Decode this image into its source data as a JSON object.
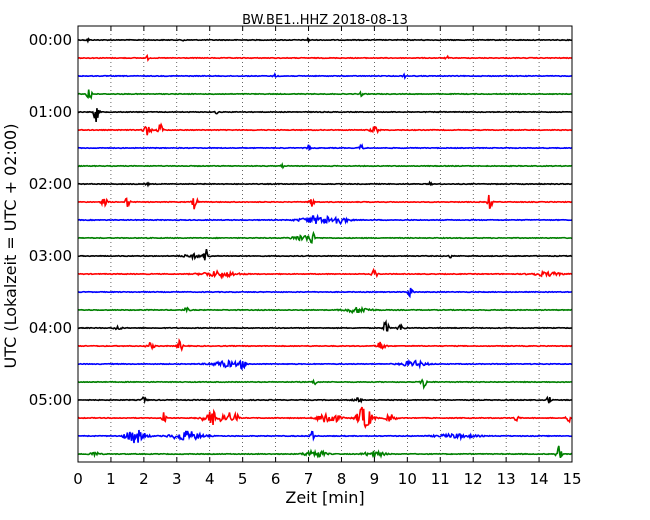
{
  "chart_data": {
    "type": "line",
    "title": "BW.BE1..HHZ 2018-08-13",
    "xlabel": "Zeit  [min]",
    "ylabel": "UTC (Lokalzeit = UTC + 02:00)",
    "xlim": [
      0,
      15
    ],
    "x_ticks": [
      "0",
      "1",
      "2",
      "3",
      "4",
      "5",
      "6",
      "7",
      "8",
      "9",
      "10",
      "11",
      "12",
      "13",
      "14",
      "15"
    ],
    "y_tick_labels": [
      "00:00",
      "01:00",
      "02:00",
      "03:00",
      "04:00",
      "05:00"
    ],
    "minutes_per_trace": 15,
    "grid": "x-dotted",
    "series": [
      {
        "start": "00:00",
        "color": "#000000",
        "bursts": [
          [
            0.3,
            0.03,
            2
          ],
          [
            3.2,
            0.03,
            2
          ],
          [
            7.0,
            0.03,
            2
          ]
        ]
      },
      {
        "start": "00:15",
        "color": "#ff0000",
        "bursts": [
          [
            2.1,
            0.04,
            2
          ],
          [
            11.2,
            0.03,
            2
          ]
        ]
      },
      {
        "start": "00:30",
        "color": "#0000ff",
        "bursts": [
          [
            6.0,
            0.05,
            2
          ],
          [
            9.9,
            0.03,
            2
          ]
        ]
      },
      {
        "start": "00:45",
        "color": "#008000",
        "bursts": [
          [
            0.35,
            0.05,
            8
          ],
          [
            8.6,
            0.04,
            2
          ]
        ]
      },
      {
        "start": "01:00",
        "color": "#000000",
        "bursts": [
          [
            0.55,
            0.05,
            10
          ],
          [
            4.2,
            0.03,
            2
          ]
        ]
      },
      {
        "start": "01:15",
        "color": "#ff0000",
        "bursts": [
          [
            2.1,
            0.08,
            5
          ],
          [
            2.5,
            0.05,
            7
          ],
          [
            9.0,
            0.08,
            4
          ]
        ]
      },
      {
        "start": "01:30",
        "color": "#0000ff",
        "bursts": [
          [
            7.0,
            0.04,
            3
          ],
          [
            8.6,
            0.04,
            4
          ]
        ]
      },
      {
        "start": "01:45",
        "color": "#008000",
        "bursts": [
          [
            6.2,
            0.03,
            2
          ]
        ]
      },
      {
        "start": "02:00",
        "color": "#000000",
        "bursts": [
          [
            2.1,
            0.03,
            2
          ],
          [
            10.7,
            0.03,
            2
          ]
        ]
      },
      {
        "start": "02:15",
        "color": "#ff0000",
        "bursts": [
          [
            0.8,
            0.06,
            4
          ],
          [
            1.5,
            0.05,
            5
          ],
          [
            3.55,
            0.05,
            8
          ],
          [
            7.1,
            0.05,
            5
          ],
          [
            12.5,
            0.05,
            8
          ]
        ]
      },
      {
        "start": "02:30",
        "color": "#0000ff",
        "bursts": [
          [
            7.3,
            0.35,
            4
          ],
          [
            7.9,
            0.2,
            3
          ]
        ]
      },
      {
        "start": "02:45",
        "color": "#008000",
        "bursts": [
          [
            6.8,
            0.2,
            3
          ],
          [
            7.1,
            0.05,
            7
          ]
        ]
      },
      {
        "start": "03:00",
        "color": "#000000",
        "bursts": [
          [
            3.5,
            0.2,
            2
          ],
          [
            3.9,
            0.05,
            8
          ],
          [
            11.3,
            0.03,
            2
          ]
        ]
      },
      {
        "start": "03:15",
        "color": "#ff0000",
        "bursts": [
          [
            4.3,
            0.35,
            3
          ],
          [
            9.0,
            0.05,
            5
          ],
          [
            14.2,
            0.3,
            2
          ]
        ]
      },
      {
        "start": "03:30",
        "color": "#0000ff",
        "bursts": [
          [
            10.1,
            0.05,
            6
          ]
        ]
      },
      {
        "start": "03:45",
        "color": "#008000",
        "bursts": [
          [
            3.3,
            0.06,
            2
          ],
          [
            8.5,
            0.25,
            3
          ]
        ]
      },
      {
        "start": "04:00",
        "color": "#000000",
        "bursts": [
          [
            1.2,
            0.08,
            2
          ],
          [
            9.35,
            0.05,
            8
          ],
          [
            9.8,
            0.08,
            3
          ]
        ]
      },
      {
        "start": "04:15",
        "color": "#ff0000",
        "bursts": [
          [
            2.2,
            0.08,
            3
          ],
          [
            3.1,
            0.05,
            6
          ],
          [
            9.2,
            0.08,
            5
          ]
        ]
      },
      {
        "start": "04:30",
        "color": "#0000ff",
        "bursts": [
          [
            4.5,
            0.3,
            3
          ],
          [
            5.0,
            0.05,
            5
          ],
          [
            10.2,
            0.25,
            3
          ]
        ]
      },
      {
        "start": "04:45",
        "color": "#008000",
        "bursts": [
          [
            7.2,
            0.05,
            3
          ],
          [
            10.5,
            0.05,
            7
          ]
        ]
      },
      {
        "start": "05:00",
        "color": "#000000",
        "bursts": [
          [
            2.0,
            0.05,
            3
          ],
          [
            8.5,
            0.1,
            2
          ],
          [
            14.3,
            0.05,
            4
          ]
        ]
      },
      {
        "start": "05:15",
        "color": "#ff0000",
        "bursts": [
          [
            2.6,
            0.05,
            6
          ],
          [
            4.1,
            0.2,
            7
          ],
          [
            4.6,
            0.05,
            6
          ],
          [
            4.8,
            0.05,
            5
          ],
          [
            7.6,
            0.2,
            7
          ],
          [
            8.7,
            0.15,
            12
          ],
          [
            9.5,
            0.1,
            4
          ],
          [
            13.3,
            0.05,
            4
          ],
          [
            14.9,
            0.05,
            4
          ]
        ]
      },
      {
        "start": "05:30",
        "color": "#0000ff",
        "bursts": [
          [
            1.75,
            0.2,
            7
          ],
          [
            3.3,
            0.3,
            5
          ],
          [
            7.1,
            0.05,
            5
          ],
          [
            11.5,
            0.4,
            2
          ]
        ]
      },
      {
        "start": "05:45",
        "color": "#008000",
        "bursts": [
          [
            0.5,
            0.1,
            2
          ],
          [
            7.2,
            0.2,
            4
          ],
          [
            9.0,
            0.2,
            3
          ],
          [
            14.6,
            0.05,
            9
          ]
        ]
      }
    ],
    "note_bursts": "each burst = [minute, duration_min, amplitude]"
  }
}
